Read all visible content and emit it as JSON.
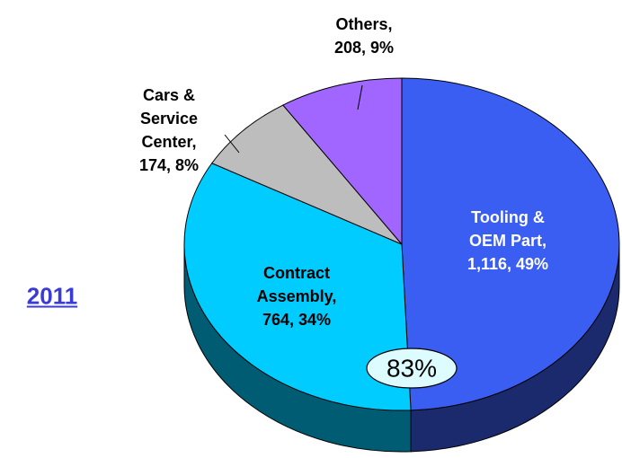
{
  "chart_data": {
    "type": "pie3d",
    "title": "2011",
    "categories": [
      "Tooling & OEM Part",
      "Contract Assembly",
      "Cars & Service Center",
      "Others"
    ],
    "values": [
      1116,
      764,
      174,
      208
    ],
    "value_labels": [
      "Tooling &\nOEM Part,\n1,116, 49%",
      "Contract\nAssembly,\n764, 34%",
      "Cars &\nService\nCenter,\n174, 8%",
      "Others,\n208, 9%"
    ],
    "colors": [
      "#3b5ef2",
      "#00ccff",
      "#bdbdbd",
      "#a066ff"
    ],
    "annotation": "83%"
  }
}
